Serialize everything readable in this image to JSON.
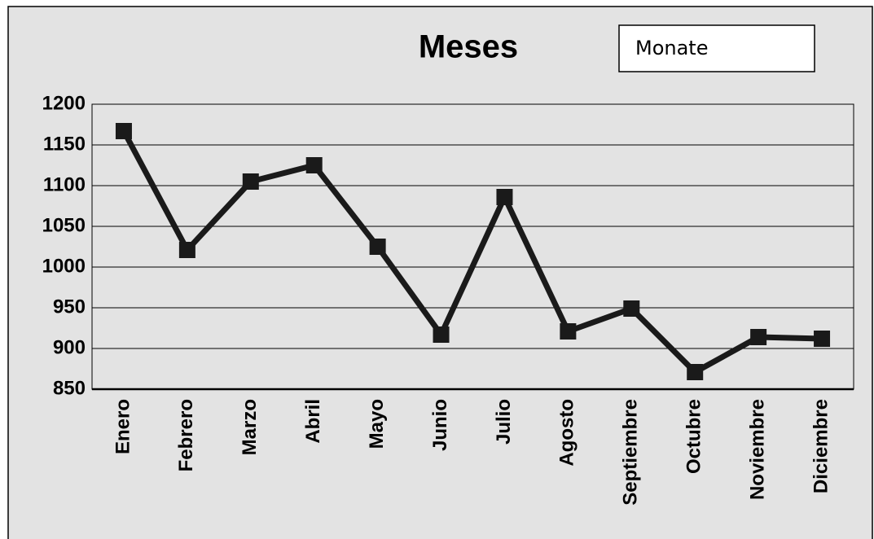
{
  "chart_data": {
    "type": "line",
    "title": "Meses",
    "categories": [
      "Enero",
      "Febrero",
      "Marzo",
      "Abril",
      "Mayo",
      "Junio",
      "Julio",
      "Agosto",
      "Septiembre",
      "Octubre",
      "Noviembre",
      "Diciembre"
    ],
    "series": [
      {
        "name": "Monate",
        "color": "#1a1a1a",
        "values": [
          1167,
          1021,
          1105,
          1125,
          1025,
          917,
          1086,
          921,
          949,
          871,
          914,
          912
        ]
      }
    ],
    "ylim": [
      850,
      1200
    ],
    "yticks": [
      850,
      900,
      950,
      1000,
      1050,
      1100,
      1150,
      1200
    ],
    "grid": true,
    "legend": "top-right"
  }
}
